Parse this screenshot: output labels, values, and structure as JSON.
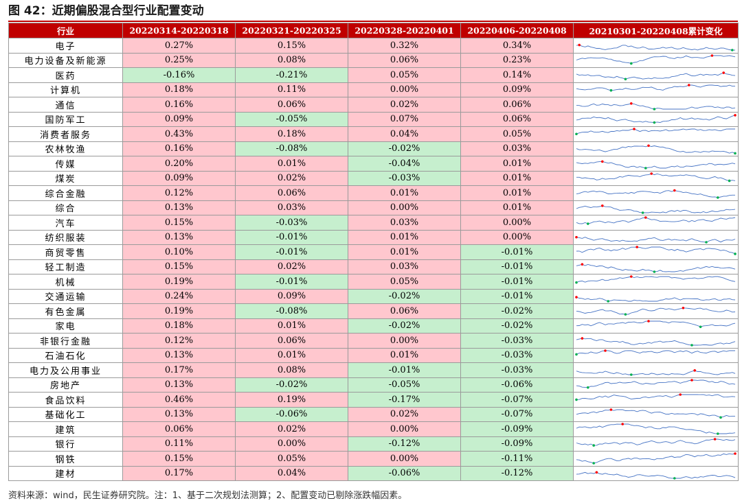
{
  "figure": {
    "title": "图 42：近期偏股混合型行业配置变动",
    "source_note": "资料来源：wind，民生证券研究院。注：1、基于二次规划法测算；2、配置变动已剔除涨跌幅因素。"
  },
  "chart_data": {
    "type": "table",
    "columns": [
      "行业",
      "20220314-20220318",
      "20220321-20220325",
      "20220328-20220401",
      "20220406-20220408",
      "20210301-20220408累计变化"
    ],
    "rows": [
      {
        "industry": "电子",
        "values": [
          "0.27%",
          "0.15%",
          "0.32%",
          "0.34%"
        ]
      },
      {
        "industry": "电力设备及新能源",
        "values": [
          "0.25%",
          "0.08%",
          "0.06%",
          "0.23%"
        ]
      },
      {
        "industry": "医药",
        "values": [
          "-0.16%",
          "-0.21%",
          "0.05%",
          "0.14%"
        ]
      },
      {
        "industry": "计算机",
        "values": [
          "0.18%",
          "0.11%",
          "0.00%",
          "0.09%"
        ]
      },
      {
        "industry": "通信",
        "values": [
          "0.16%",
          "0.06%",
          "0.02%",
          "0.06%"
        ]
      },
      {
        "industry": "国防军工",
        "values": [
          "0.09%",
          "-0.05%",
          "0.07%",
          "0.06%"
        ]
      },
      {
        "industry": "消费者服务",
        "values": [
          "0.43%",
          "0.18%",
          "0.04%",
          "0.05%"
        ]
      },
      {
        "industry": "农林牧渔",
        "values": [
          "0.16%",
          "-0.08%",
          "-0.02%",
          "0.03%"
        ]
      },
      {
        "industry": "传媒",
        "values": [
          "0.20%",
          "0.01%",
          "-0.04%",
          "0.01%"
        ]
      },
      {
        "industry": "煤炭",
        "values": [
          "0.09%",
          "0.02%",
          "-0.03%",
          "0.01%"
        ]
      },
      {
        "industry": "综合金融",
        "values": [
          "0.12%",
          "0.06%",
          "0.01%",
          "0.01%"
        ]
      },
      {
        "industry": "综合",
        "values": [
          "0.13%",
          "0.03%",
          "0.00%",
          "0.01%"
        ]
      },
      {
        "industry": "汽车",
        "values": [
          "0.15%",
          "-0.03%",
          "0.03%",
          "0.00%"
        ]
      },
      {
        "industry": "纺织服装",
        "values": [
          "0.13%",
          "-0.01%",
          "0.01%",
          "0.00%"
        ]
      },
      {
        "industry": "商贸零售",
        "values": [
          "0.10%",
          "-0.01%",
          "0.01%",
          "-0.01%"
        ]
      },
      {
        "industry": "轻工制造",
        "values": [
          "0.15%",
          "0.02%",
          "0.03%",
          "-0.01%"
        ]
      },
      {
        "industry": "机械",
        "values": [
          "0.19%",
          "-0.01%",
          "0.05%",
          "-0.01%"
        ]
      },
      {
        "industry": "交通运输",
        "values": [
          "0.24%",
          "0.09%",
          "-0.02%",
          "-0.01%"
        ]
      },
      {
        "industry": "有色金属",
        "values": [
          "0.19%",
          "-0.08%",
          "0.06%",
          "-0.02%"
        ]
      },
      {
        "industry": "家电",
        "values": [
          "0.18%",
          "0.01%",
          "-0.02%",
          "-0.02%"
        ]
      },
      {
        "industry": "非银行金融",
        "values": [
          "0.12%",
          "0.06%",
          "0.00%",
          "-0.03%"
        ]
      },
      {
        "industry": "石油石化",
        "values": [
          "0.13%",
          "0.01%",
          "0.01%",
          "-0.03%"
        ]
      },
      {
        "industry": "电力及公用事业",
        "values": [
          "0.17%",
          "0.08%",
          "-0.01%",
          "-0.03%"
        ]
      },
      {
        "industry": "房地产",
        "values": [
          "0.13%",
          "-0.02%",
          "-0.05%",
          "-0.06%"
        ]
      },
      {
        "industry": "食品饮料",
        "values": [
          "0.46%",
          "0.19%",
          "-0.17%",
          "-0.07%"
        ]
      },
      {
        "industry": "基础化工",
        "values": [
          "0.13%",
          "-0.06%",
          "0.02%",
          "-0.07%"
        ]
      },
      {
        "industry": "建筑",
        "values": [
          "0.06%",
          "0.02%",
          "0.00%",
          "-0.09%"
        ]
      },
      {
        "industry": "银行",
        "values": [
          "0.11%",
          "0.00%",
          "-0.12%",
          "-0.09%"
        ]
      },
      {
        "industry": "钢铁",
        "values": [
          "0.15%",
          "0.05%",
          "0.00%",
          "-0.11%"
        ]
      },
      {
        "industry": "建材",
        "values": [
          "0.17%",
          "0.04%",
          "-0.06%",
          "-0.12%"
        ]
      }
    ],
    "cell_colors": {
      "positive_or_zero": "#ffc7ce",
      "negative": "#c6efce",
      "header": "#c00000"
    },
    "sparkline_colors": {
      "line": "#4472c4",
      "max_marker": "#ff0000",
      "min_marker": "#00b050"
    }
  }
}
